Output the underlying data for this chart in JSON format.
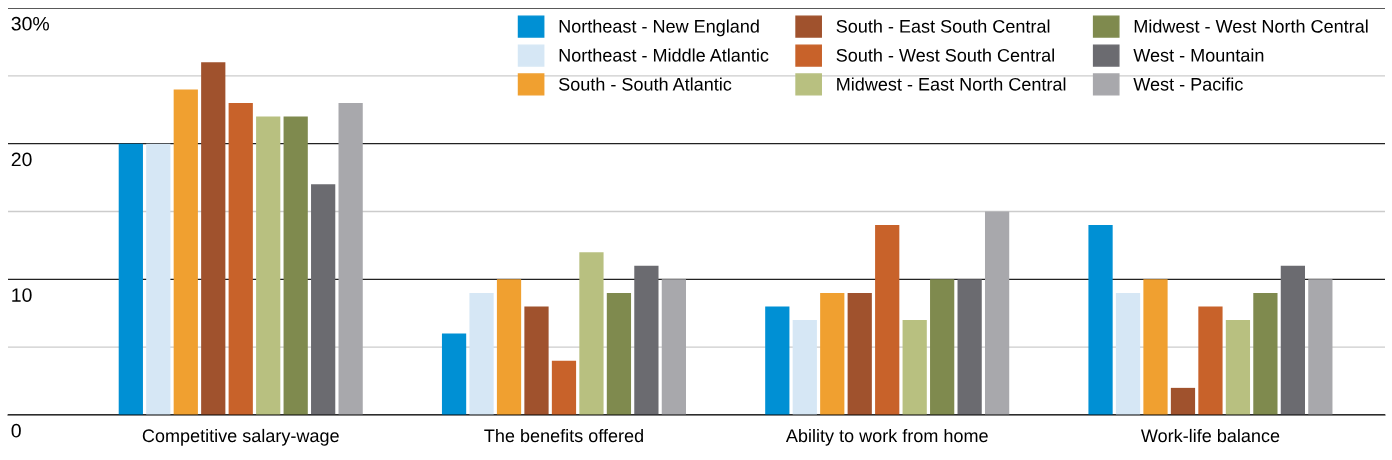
{
  "chart_data": {
    "type": "bar",
    "categories": [
      "Competitive salary-wage",
      "The benefits offered",
      "Ability to work from home",
      "Work-life balance"
    ],
    "series": [
      {
        "name": "Northeast - New England",
        "color": "#0090d4",
        "values": [
          20,
          6,
          8,
          14
        ]
      },
      {
        "name": "Northeast - Middle Atlantic",
        "color": "#d6e7f5",
        "values": [
          20,
          9,
          7,
          9
        ]
      },
      {
        "name": "South - South Atlantic",
        "color": "#f0a030",
        "values": [
          24,
          10,
          9,
          10
        ]
      },
      {
        "name": "South - East South Central",
        "color": "#a0522d",
        "values": [
          26,
          8,
          9,
          2
        ]
      },
      {
        "name": "South - West South Central",
        "color": "#c8622a",
        "values": [
          23,
          4,
          14,
          8
        ]
      },
      {
        "name": "Midwest - East North Central",
        "color": "#b8c080",
        "values": [
          22,
          12,
          7,
          7
        ]
      },
      {
        "name": "Midwest - West North Central",
        "color": "#7f8a4e",
        "values": [
          22,
          9,
          10,
          9
        ]
      },
      {
        "name": "West - Mountain",
        "color": "#6b6b70",
        "values": [
          17,
          11,
          10,
          11
        ]
      },
      {
        "name": "West - Pacific",
        "color": "#a8a8ac",
        "values": [
          23,
          10,
          15,
          10
        ]
      }
    ],
    "ylim": [
      0,
      30
    ],
    "yticks": [
      0,
      {
        "value": 5,
        "label": null
      },
      10,
      {
        "value": 15,
        "label": null
      },
      20,
      {
        "value": 25,
        "label": null
      },
      {
        "value": 30,
        "label": "30%"
      }
    ],
    "grid": "y",
    "legend": "top right"
  }
}
